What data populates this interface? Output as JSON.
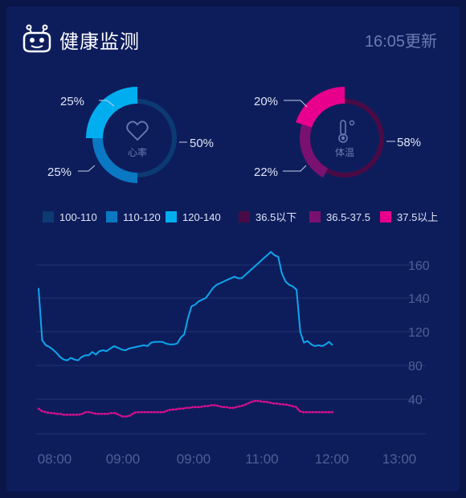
{
  "header": {
    "title": "健康监测",
    "time": "16:05更新"
  },
  "colors": {
    "hr_100_110": "#0c3a73",
    "hr_110_120": "#0a78c2",
    "hr_120_140": "#00aeef",
    "temp_below": "#4a0a45",
    "temp_mid": "#7a1070",
    "temp_above": "#e8008c",
    "hr_line": "#0ea6ec",
    "temp_line": "#d4108c"
  },
  "chart_data": [
    {
      "type": "pie",
      "name": "心率",
      "center_label": "心率",
      "icon": "heart-icon",
      "slices": [
        {
          "label": "100-110",
          "value": 50,
          "text": "50%"
        },
        {
          "label": "110-120",
          "value": 25,
          "text": "25%"
        },
        {
          "label": "120-140",
          "value": 25,
          "text": "25%"
        }
      ]
    },
    {
      "type": "pie",
      "name": "体温",
      "center_label": "体温",
      "icon": "thermometer-icon",
      "slices": [
        {
          "label": "36.5以下",
          "value": 58,
          "text": "58%"
        },
        {
          "label": "36.5-37.5",
          "value": 22,
          "text": "22%"
        },
        {
          "label": "37.5以上",
          "value": 20,
          "text": "20%"
        }
      ]
    },
    {
      "type": "line",
      "x_tick_labels": [
        "08:00",
        "09:00",
        "09:00",
        "11:00",
        "12:00",
        "13:00"
      ],
      "y_ticks": [
        40,
        80,
        120,
        140,
        160
      ],
      "ylim": [
        0,
        160
      ],
      "series": [
        {
          "style": "solid",
          "values": [
            146,
            110,
            104,
            102,
            99,
            95,
            90,
            87,
            86,
            89,
            87,
            86,
            90,
            92,
            92,
            96,
            93,
            97,
            98,
            97,
            100,
            103,
            101,
            99,
            98,
            100,
            101,
            102,
            103,
            104,
            103,
            107,
            108,
            108,
            108,
            106,
            105,
            105,
            106,
            113,
            117,
            128,
            135,
            136,
            138,
            139,
            140,
            143,
            146,
            148,
            149,
            150,
            151,
            152,
            153,
            152,
            152,
            154,
            156,
            158,
            160,
            162,
            164,
            166,
            168,
            166,
            165,
            155,
            150,
            148,
            147,
            145,
            120,
            107,
            109,
            105,
            103,
            104,
            103,
            105,
            108,
            104
          ],
          "x_start": 0,
          "x_end": 4.25
        },
        {
          "style": "dotted",
          "values": [
            29,
            26,
            25,
            24,
            24,
            23,
            23,
            22,
            22,
            22,
            22,
            22,
            23,
            25,
            25,
            24,
            23,
            23,
            23,
            23,
            24,
            24,
            22,
            20,
            20,
            21,
            24,
            25,
            25,
            25,
            25,
            25,
            25,
            25,
            25,
            27,
            28,
            28,
            29,
            29,
            30,
            30,
            31,
            31,
            31,
            32,
            32,
            33,
            33,
            32,
            31,
            31,
            30,
            30,
            31,
            32,
            33,
            35,
            37,
            38,
            38,
            37,
            37,
            36,
            35,
            35,
            34,
            34,
            33,
            32,
            31,
            26,
            25,
            25,
            25,
            25,
            25,
            25,
            25,
            25,
            25
          ],
          "x_start": 0,
          "x_end": 4.25
        }
      ]
    }
  ],
  "legend": [
    {
      "label": "100-110",
      "color": "#0c3a73"
    },
    {
      "label": "110-120",
      "color": "#0a78c2"
    },
    {
      "label": "120-140",
      "color": "#00aeef"
    },
    {
      "label": "36.5以下",
      "color": "#4a0a45"
    },
    {
      "label": "36.5-37.5",
      "color": "#7a1070"
    },
    {
      "label": "37.5以上",
      "color": "#e8008c"
    }
  ]
}
